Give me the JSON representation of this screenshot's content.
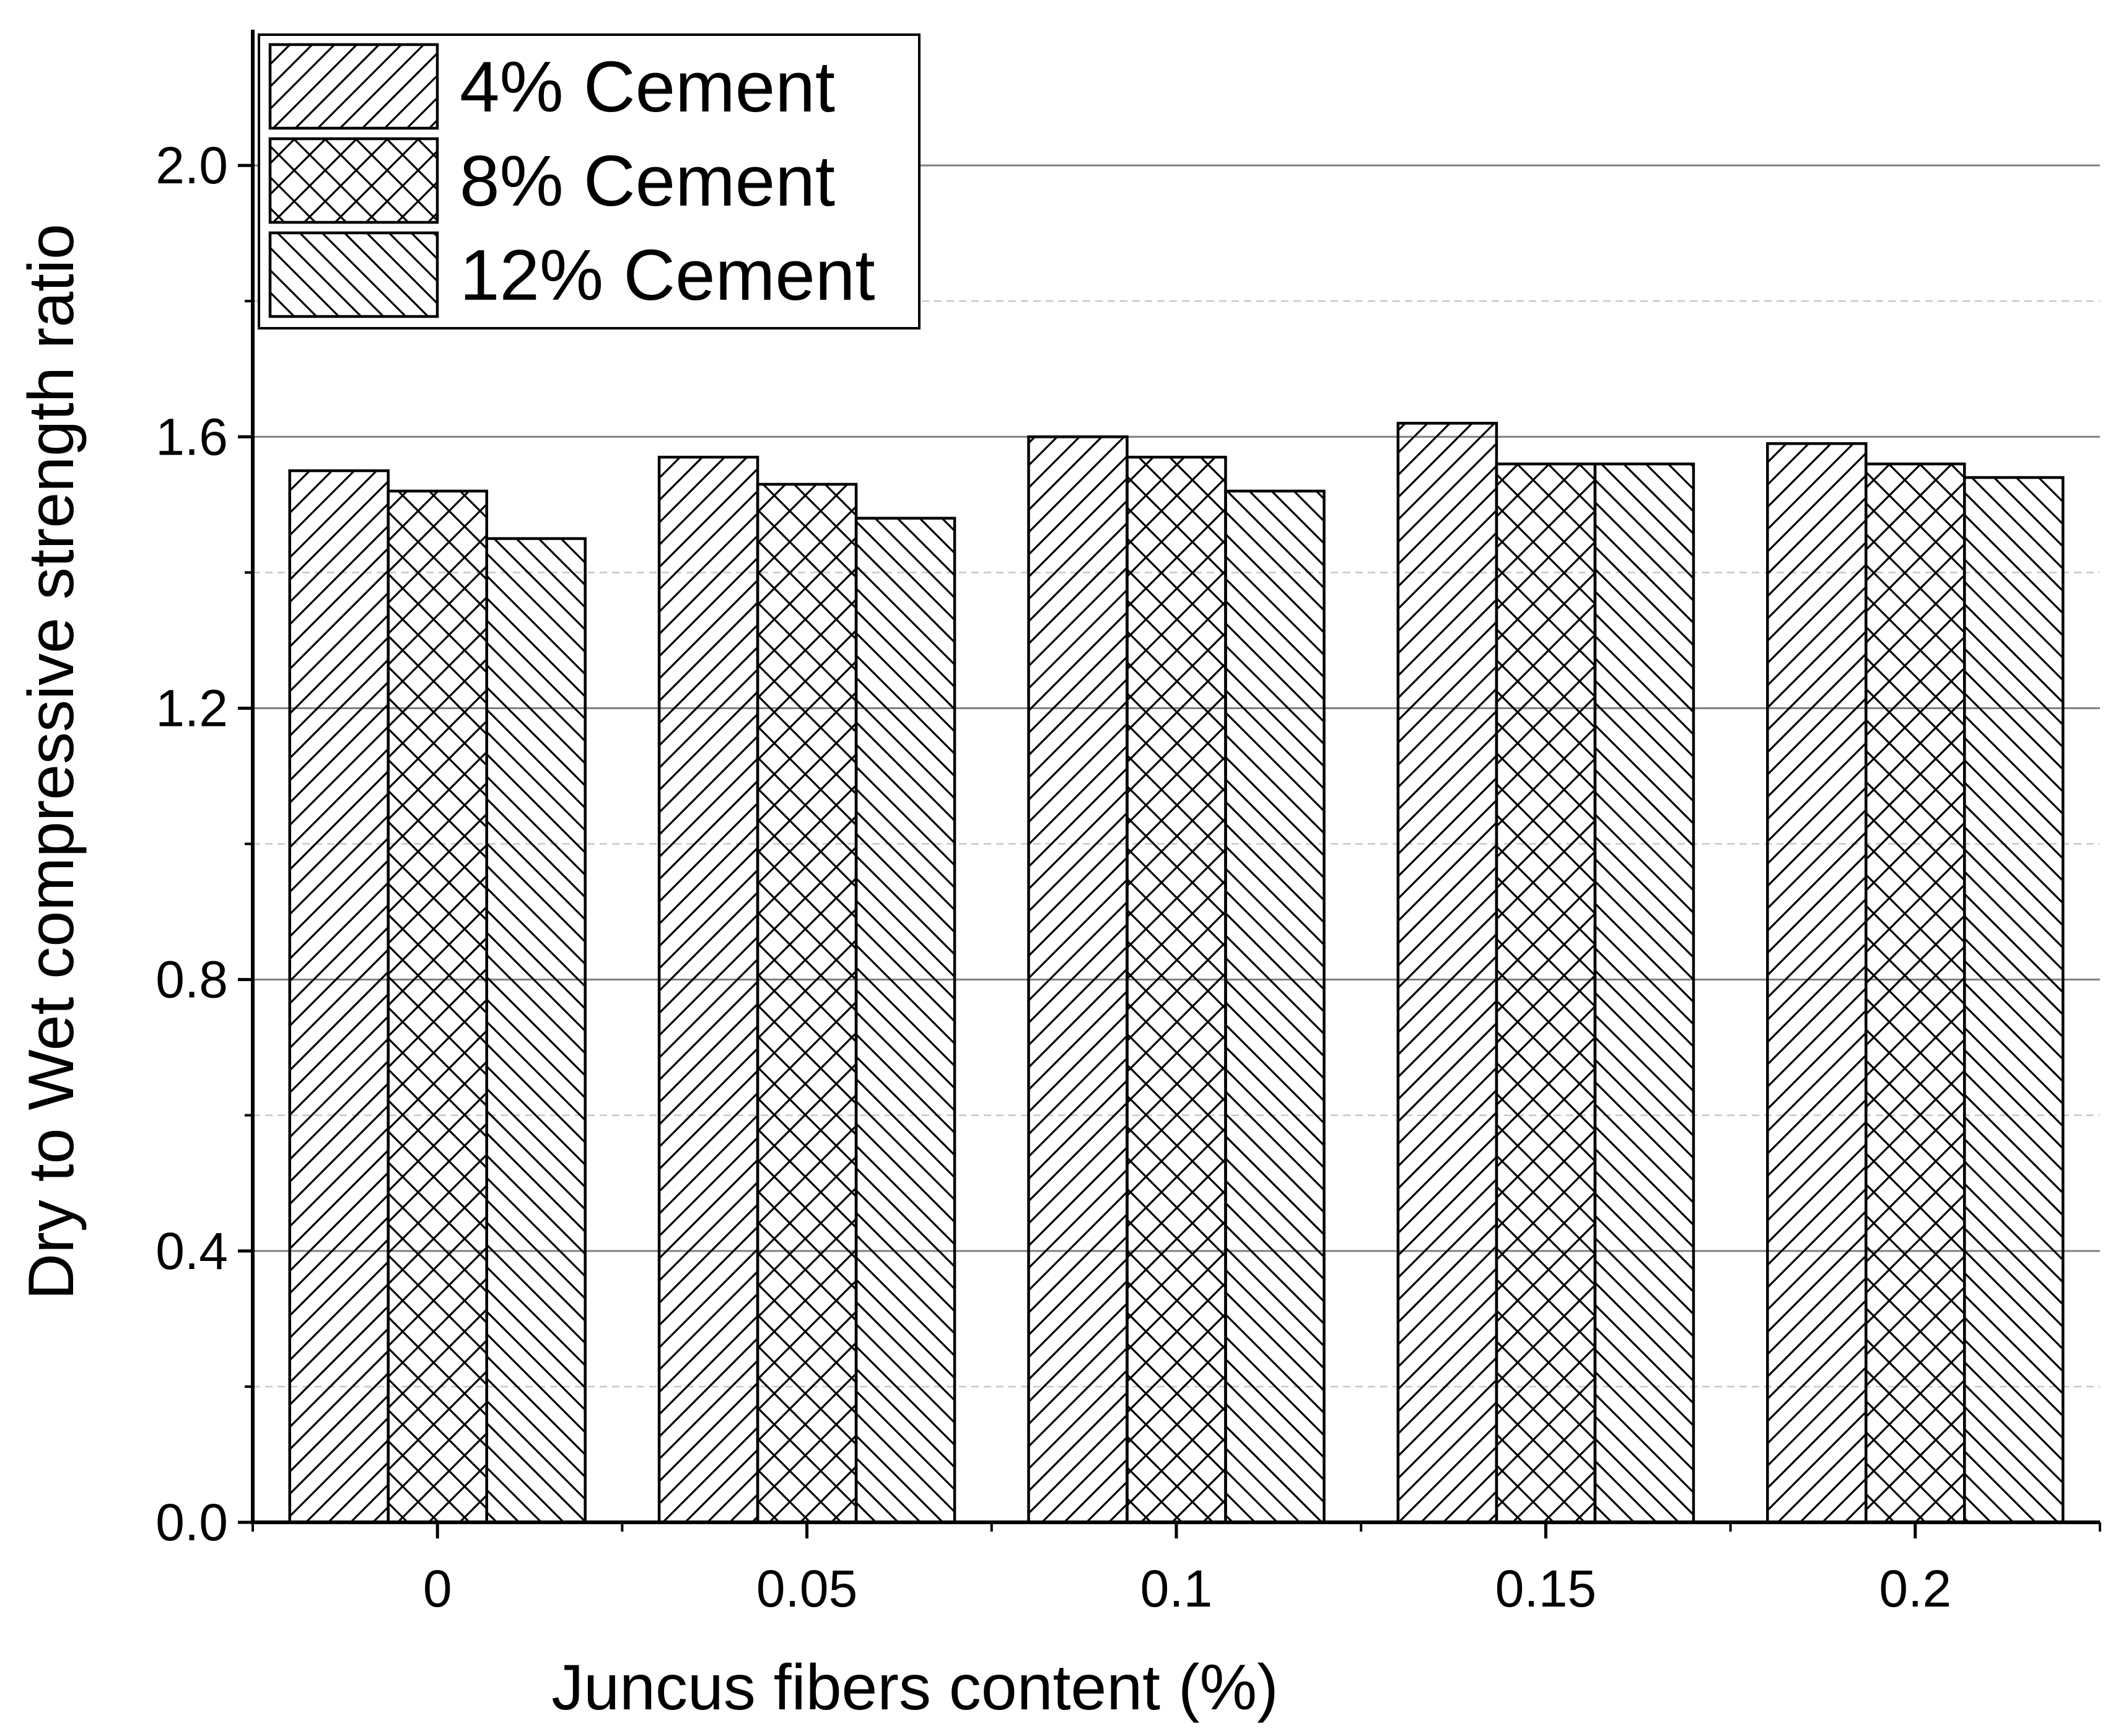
{
  "chart_data": {
    "type": "bar",
    "title": "",
    "xlabel": "Juncus fibers content (%)",
    "ylabel": "Dry to Wet compressive strength ratio",
    "categories": [
      "0",
      "0.05",
      "0.1",
      "0.15",
      "0.2"
    ],
    "series": [
      {
        "name": "4% Cement",
        "pattern": "diagonal-forward",
        "values": [
          1.55,
          1.57,
          1.6,
          1.62,
          1.59
        ]
      },
      {
        "name": "8% Cement",
        "pattern": "crosshatch",
        "values": [
          1.52,
          1.53,
          1.57,
          1.56,
          1.56
        ]
      },
      {
        "name": "12% Cement",
        "pattern": "diagonal-backward",
        "values": [
          1.45,
          1.48,
          1.52,
          1.56,
          1.54
        ]
      }
    ],
    "ylim": [
      0,
      2.2
    ],
    "yticks": [
      "0.0",
      "0.4",
      "0.8",
      "1.2",
      "1.6",
      "2.0"
    ],
    "ytick_values": [
      0,
      0.4,
      0.8,
      1.2,
      1.6,
      2.0
    ],
    "minor_grid_values": [
      0.2,
      0.6,
      1.0,
      1.4,
      1.8
    ],
    "grid": true,
    "legend_position": "top-left",
    "colors": {
      "bar_fill": "#ffffff",
      "bar_stroke": "#000000",
      "major_grid": "#808080",
      "minor_grid": "#c8c8c8"
    }
  }
}
